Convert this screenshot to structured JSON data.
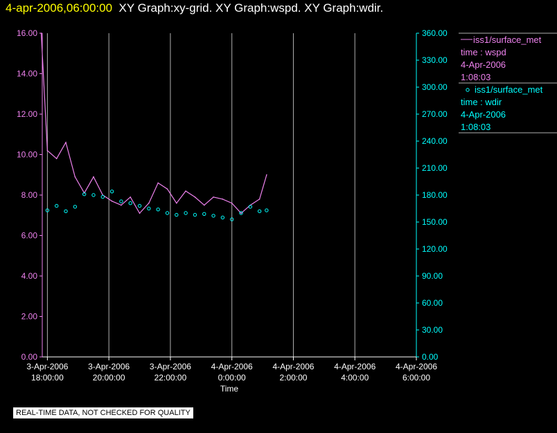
{
  "header": {
    "date": "4-apr-2006,06:00:00",
    "graphs": "XY Graph:xy-grid.  XY Graph:wspd.  XY Graph:wdir."
  },
  "colors": {
    "wspd": "#ee82ee",
    "wdir": "#00ffff",
    "grid": "#b0b0b0",
    "header_date": "#ffff00"
  },
  "quality_note": "REAL-TIME DATA, NOT CHECKED FOR QUALITY",
  "chart_data": {
    "type": "line",
    "xlabel": "Time",
    "x_range": [
      "2006-04-03T17:50:00",
      "2006-04-04T06:00:00"
    ],
    "x_ticks": [
      {
        "top": "3-Apr-2006",
        "bottom": "18:00:00"
      },
      {
        "top": "3-Apr-2006",
        "bottom": "20:00:00"
      },
      {
        "top": "3-Apr-2006",
        "bottom": "22:00:00"
      },
      {
        "top": "4-Apr-2006",
        "bottom": "0:00:00"
      },
      {
        "top": "4-Apr-2006",
        "bottom": "2:00:00"
      },
      {
        "top": "4-Apr-2006",
        "bottom": "4:00:00"
      },
      {
        "top": "4-Apr-2006",
        "bottom": "6:00:00"
      }
    ],
    "x_tick_hours": [
      0,
      2,
      4,
      6,
      8,
      10,
      12
    ],
    "y_left": {
      "range": [
        0,
        16
      ],
      "ticks": [
        "0.00",
        "2.00",
        "4.00",
        "6.00",
        "8.00",
        "10.00",
        "12.00",
        "14.00",
        "16.00"
      ]
    },
    "y_right": {
      "range": [
        0,
        360
      ],
      "ticks": [
        "0.00",
        "30.00",
        "60.00",
        "90.00",
        "120.00",
        "150.00",
        "180.00",
        "210.00",
        "240.00",
        "270.00",
        "300.00",
        "330.00",
        "360.00"
      ]
    },
    "grid": true,
    "legend_position": "right",
    "series": [
      {
        "name": "iss1/surface_met",
        "legend_lines": [
          "iss1/surface_met",
          "time : wspd",
          "4-Apr-2006",
          "1:08:03"
        ],
        "axis": "left",
        "style": "line",
        "x_hours": [
          -0.2,
          0,
          0.3,
          0.6,
          0.9,
          1.2,
          1.5,
          1.8,
          2.1,
          2.4,
          2.7,
          3.0,
          3.3,
          3.6,
          3.9,
          4.2,
          4.5,
          4.8,
          5.1,
          5.4,
          5.7,
          6.0,
          6.3,
          6.6,
          6.9,
          7.13
        ],
        "values": [
          16.0,
          10.2,
          9.8,
          10.6,
          8.9,
          8.1,
          8.9,
          8.0,
          7.7,
          7.5,
          7.9,
          7.1,
          7.6,
          8.6,
          8.3,
          7.6,
          8.2,
          7.9,
          7.5,
          7.9,
          7.8,
          7.6,
          7.1,
          7.5,
          7.8,
          9.0
        ]
      },
      {
        "name": "iss1/surface_met",
        "legend_lines": [
          "iss1/surface_met",
          "time : wdir",
          "4-Apr-2006",
          "1:08:03"
        ],
        "axis": "right",
        "style": "markers",
        "x_hours": [
          0,
          0.3,
          0.6,
          0.9,
          1.2,
          1.5,
          1.8,
          2.1,
          2.4,
          2.7,
          3.0,
          3.3,
          3.6,
          3.9,
          4.2,
          4.5,
          4.8,
          5.1,
          5.4,
          5.7,
          6.0,
          6.3,
          6.6,
          6.9,
          7.13
        ],
        "values": [
          163,
          168,
          162,
          167,
          181,
          180,
          178,
          184,
          173,
          171,
          168,
          165,
          164,
          160,
          158,
          160,
          158,
          159,
          157,
          155,
          153,
          160,
          167,
          162,
          163
        ]
      }
    ]
  }
}
